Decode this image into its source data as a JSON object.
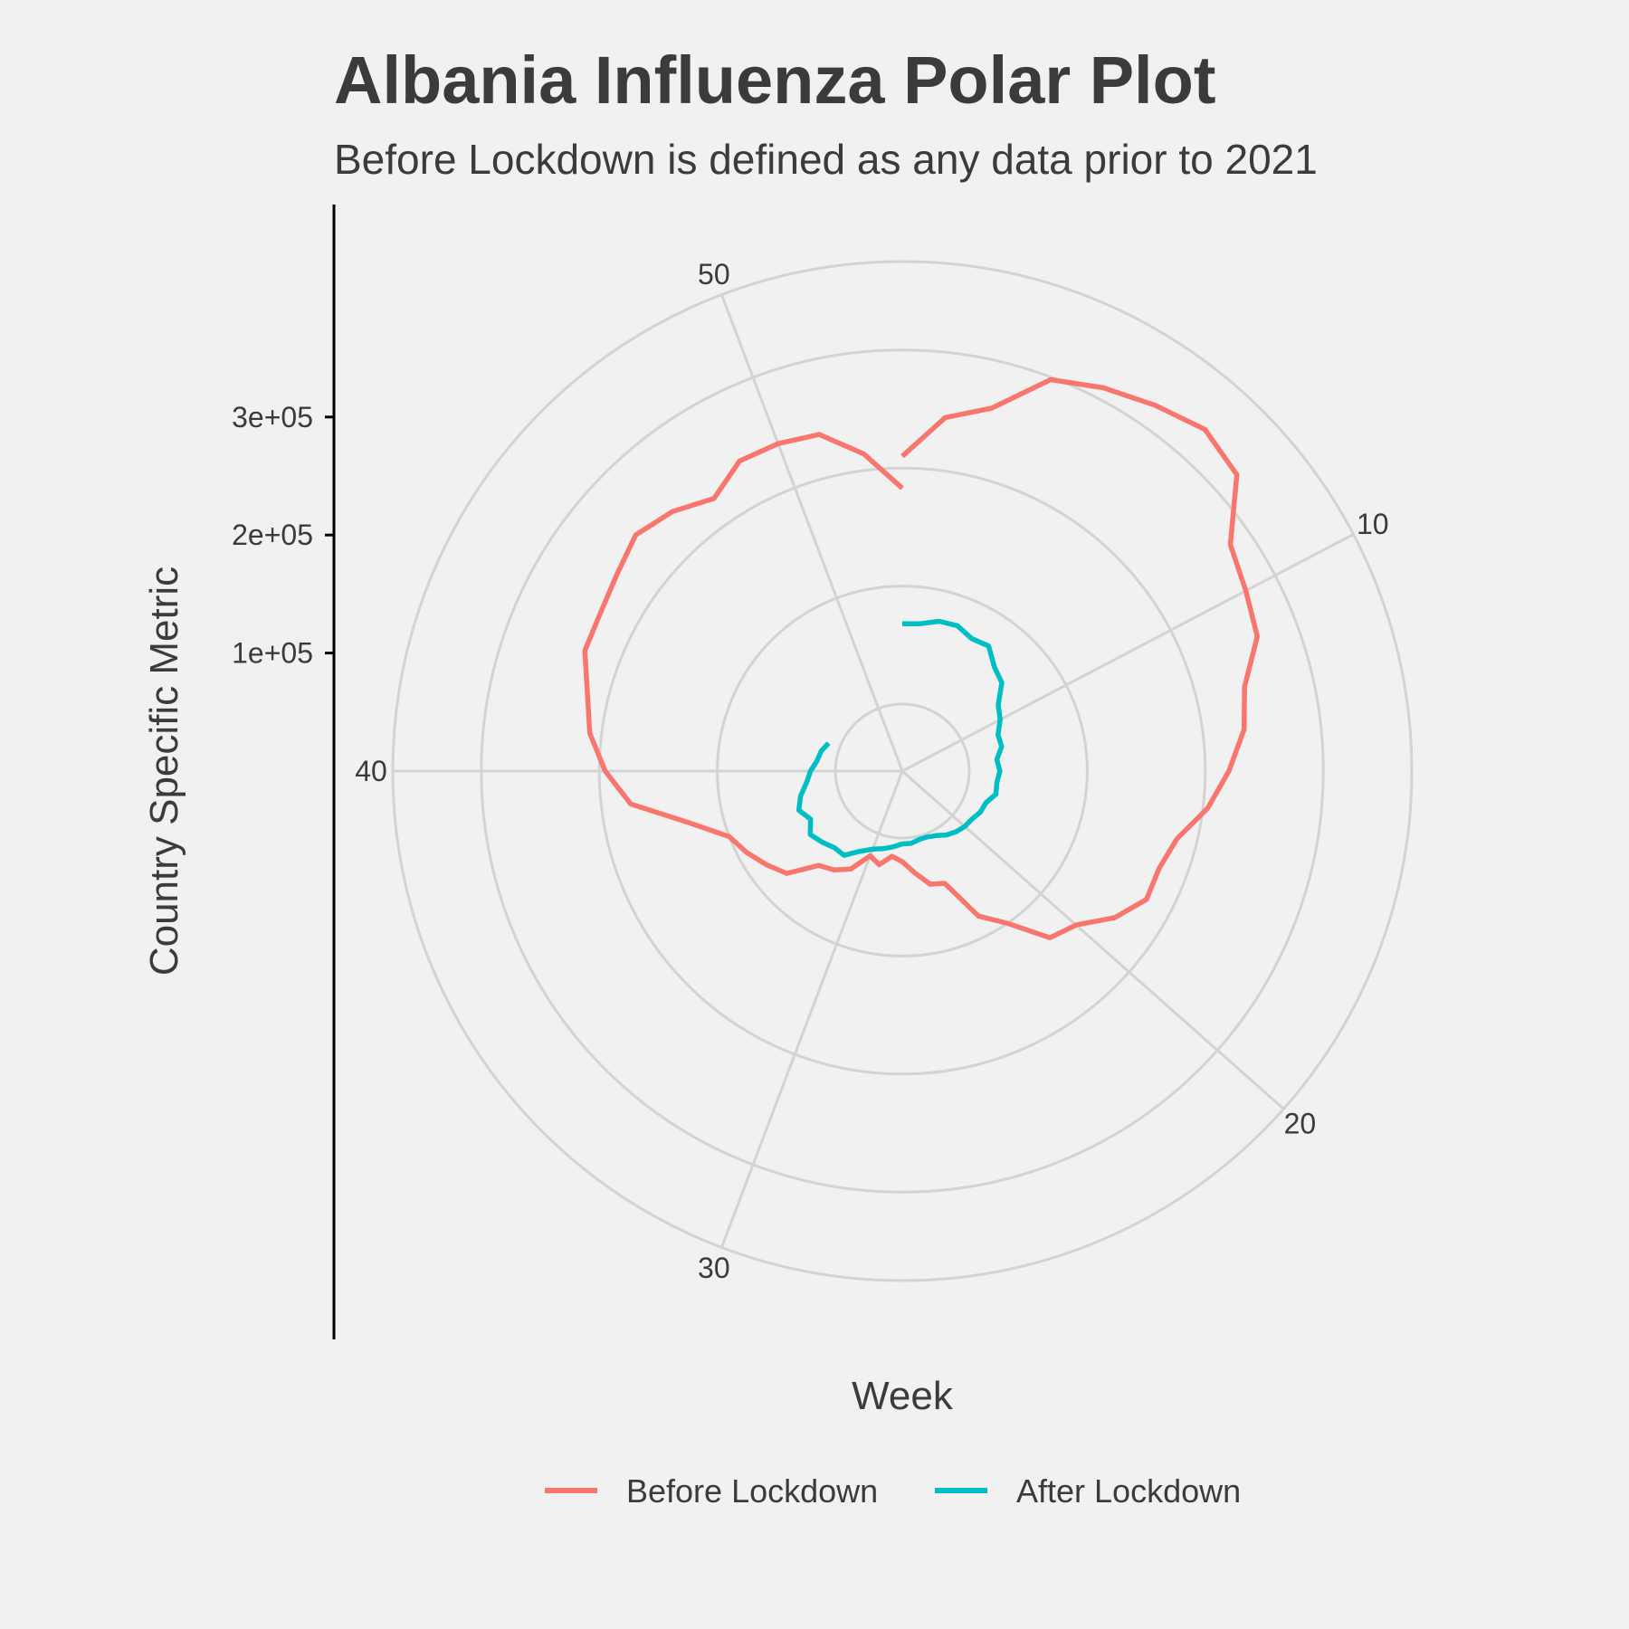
{
  "chart_data": {
    "type": "line",
    "coordinate_system": "polar",
    "title": "Albania Influenza Polar Plot",
    "subtitle": "Before Lockdown is defined as any data prior to 2021",
    "xlabel": "Week",
    "ylabel": "Country Specific Metric",
    "x_ticks": [
      "10",
      "20",
      "30",
      "40",
      "50"
    ],
    "x_tick_values": [
      10,
      20,
      30,
      40,
      50
    ],
    "xlim": [
      1,
      53
    ],
    "y_ticks": [
      "1e+05",
      "2e+05",
      "3e+05"
    ],
    "y_tick_values": [
      100000,
      200000,
      300000
    ],
    "ylim": [
      0,
      375000
    ],
    "grid": true,
    "legend_position": "bottom",
    "series": [
      {
        "name": "Before Lockdown",
        "color": "#f8766d",
        "x": [
          1,
          2,
          3,
          4,
          5,
          6,
          7,
          8,
          9,
          10,
          11,
          12,
          13,
          14,
          15,
          16,
          17,
          18,
          19,
          20,
          21,
          22,
          23,
          24,
          25,
          26,
          27,
          28,
          29,
          30,
          31,
          32,
          33,
          34,
          35,
          36,
          37,
          38,
          39,
          40,
          41,
          42,
          43,
          44,
          45,
          46,
          47,
          48,
          49,
          50,
          51,
          52,
          53
        ],
        "values": [
          210000,
          245000,
          260000,
          298000,
          310000,
          320000,
          330000,
          322000,
          281000,
          272000,
          265000,
          242000,
          235000,
          220000,
          204000,
          183000,
          176000,
          177000,
          162000,
          140000,
          132000,
          100000,
          82000,
          45000,
          42000,
          30000,
          20000,
          16000,
          25000,
          20000,
          37000,
          45000,
          50000,
          74000,
          83000,
          92000,
          100000,
          128000,
          175000,
          195000,
          210000,
          218000,
          231000,
          232000,
          237000,
          245000,
          237000,
          224000,
          240000,
          240000,
          237000,
          214000,
          183000
        ]
      },
      {
        "name": "After Lockdown",
        "color": "#00bfc4",
        "x": [
          1,
          2,
          3,
          4,
          5,
          6,
          7,
          8,
          9,
          10,
          11,
          12,
          13,
          14,
          15,
          16,
          17,
          18,
          19,
          20,
          21,
          22,
          23,
          24,
          25,
          26,
          27,
          28,
          29,
          30,
          31,
          32,
          33,
          34,
          35,
          36,
          37,
          38,
          39,
          40,
          41,
          42,
          43,
          44,
          45,
          46,
          47,
          48,
          49,
          50,
          51,
          52,
          53
        ],
        "values": [
          68000,
          69000,
          74000,
          75000,
          70000,
          72000,
          61000,
          56000,
          42000,
          37000,
          30000,
          30000,
          24000,
          26000,
          24000,
          25000,
          19000,
          18000,
          15000,
          14000,
          12000,
          9000,
          5000,
          3000,
          3000,
          5000,
          5000,
          8000,
          11000,
          14000,
          20000,
          30000,
          30000,
          34000,
          38000,
          31000,
          37000,
          32000,
          25000,
          21000,
          16000,
          14000,
          10000,
          null,
          null,
          null,
          null,
          null,
          null,
          null,
          null,
          null,
          null
        ]
      }
    ]
  }
}
